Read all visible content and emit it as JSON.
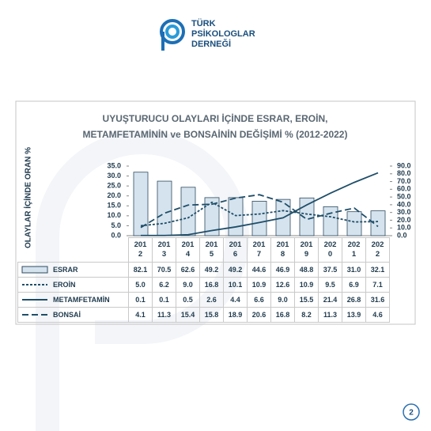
{
  "logo": {
    "lines": [
      "TÜRK",
      "PSİKOLOGLAR",
      "DERNEĞİ"
    ]
  },
  "chart_data": {
    "type": "combo",
    "title": [
      "UYUŞTURUCU OLAYLARI İÇİNDE ESRAR, EROİN,",
      "METAMFETAMİNİN ve BONSAİNİN DEĞİŞİMİ  % (2012-2022)"
    ],
    "ylabel": "OLAYLAR İÇİNDE ORAN %",
    "categories": [
      "2012",
      "2013",
      "2014",
      "2015",
      "2016",
      "2017",
      "2018",
      "2019",
      "2020",
      "2021",
      "2022"
    ],
    "ylim": [
      0,
      35
    ],
    "yticks": [
      {
        "value": 0,
        "label": "0.0"
      },
      {
        "value": 5,
        "label": "5.0"
      },
      {
        "value": 10,
        "label": "10.0"
      },
      {
        "value": 15,
        "label": "15.0"
      },
      {
        "value": 20,
        "label": "20.0"
      },
      {
        "value": 25,
        "label": "25.0"
      },
      {
        "value": 30,
        "label": "30.0"
      },
      {
        "value": 35,
        "label": "35.0"
      }
    ],
    "y2lim": [
      0,
      90
    ],
    "y2ticks": [
      {
        "value": 0,
        "label": "0.0"
      },
      {
        "value": 10,
        "label": "10.0"
      },
      {
        "value": 20,
        "label": "20.0"
      },
      {
        "value": 30,
        "label": "30.0"
      },
      {
        "value": 40,
        "label": "40.0"
      },
      {
        "value": 50,
        "label": "50.0"
      },
      {
        "value": 60,
        "label": "60.0"
      },
      {
        "value": 70,
        "label": "70.0"
      },
      {
        "value": 80,
        "label": "80.0"
      },
      {
        "value": 90,
        "label": "90.0"
      }
    ],
    "series": [
      {
        "name": "ESRAR",
        "type": "bar",
        "axis": "y2",
        "color": "#d5e3ee",
        "values": [
          82.1,
          70.5,
          62.6,
          49.2,
          49.2,
          44.6,
          46.9,
          48.8,
          37.5,
          31.0,
          32.1
        ],
        "value_labels": [
          "82.1",
          "70.5",
          "62.6",
          "49.2",
          "49.2",
          "44.6",
          "46.9",
          "48.8",
          "37.5",
          "31.0",
          "32.1"
        ]
      },
      {
        "name": "EROİN",
        "type": "line",
        "dash": "3,2",
        "color": "#1f4e69",
        "values": [
          5.0,
          6.2,
          9.0,
          16.8,
          10.1,
          10.9,
          12.6,
          10.9,
          9.5,
          6.9,
          7.1
        ],
        "value_labels": [
          "5.0",
          "6.2",
          "9.0",
          "16.8",
          "10.1",
          "10.9",
          "12.6",
          "10.9",
          "9.5",
          "6.9",
          "7.1"
        ]
      },
      {
        "name": "METAMFETAMİN",
        "type": "line",
        "dash": "none",
        "color": "#1f4e69",
        "values": [
          0.1,
          0.1,
          0.5,
          2.6,
          4.4,
          6.6,
          9.0,
          15.5,
          21.4,
          26.8,
          31.6
        ],
        "value_labels": [
          "0.1",
          "0.1",
          "0.5",
          "2.6",
          "4.4",
          "6.6",
          "9.0",
          "15.5",
          "21.4",
          "26.8",
          "31.6"
        ]
      },
      {
        "name": "BONSAİ",
        "type": "line",
        "dash": "8,4",
        "color": "#1f4e69",
        "values": [
          4.1,
          11.3,
          15.4,
          15.8,
          18.9,
          20.6,
          16.8,
          8.2,
          11.3,
          13.9,
          4.6
        ],
        "value_labels": [
          "4.1",
          "11.3",
          "15.4",
          "15.8",
          "18.9",
          "20.6",
          "16.8",
          "8.2",
          "11.3",
          "13.9",
          "4.6"
        ]
      }
    ]
  },
  "page_number": "2"
}
